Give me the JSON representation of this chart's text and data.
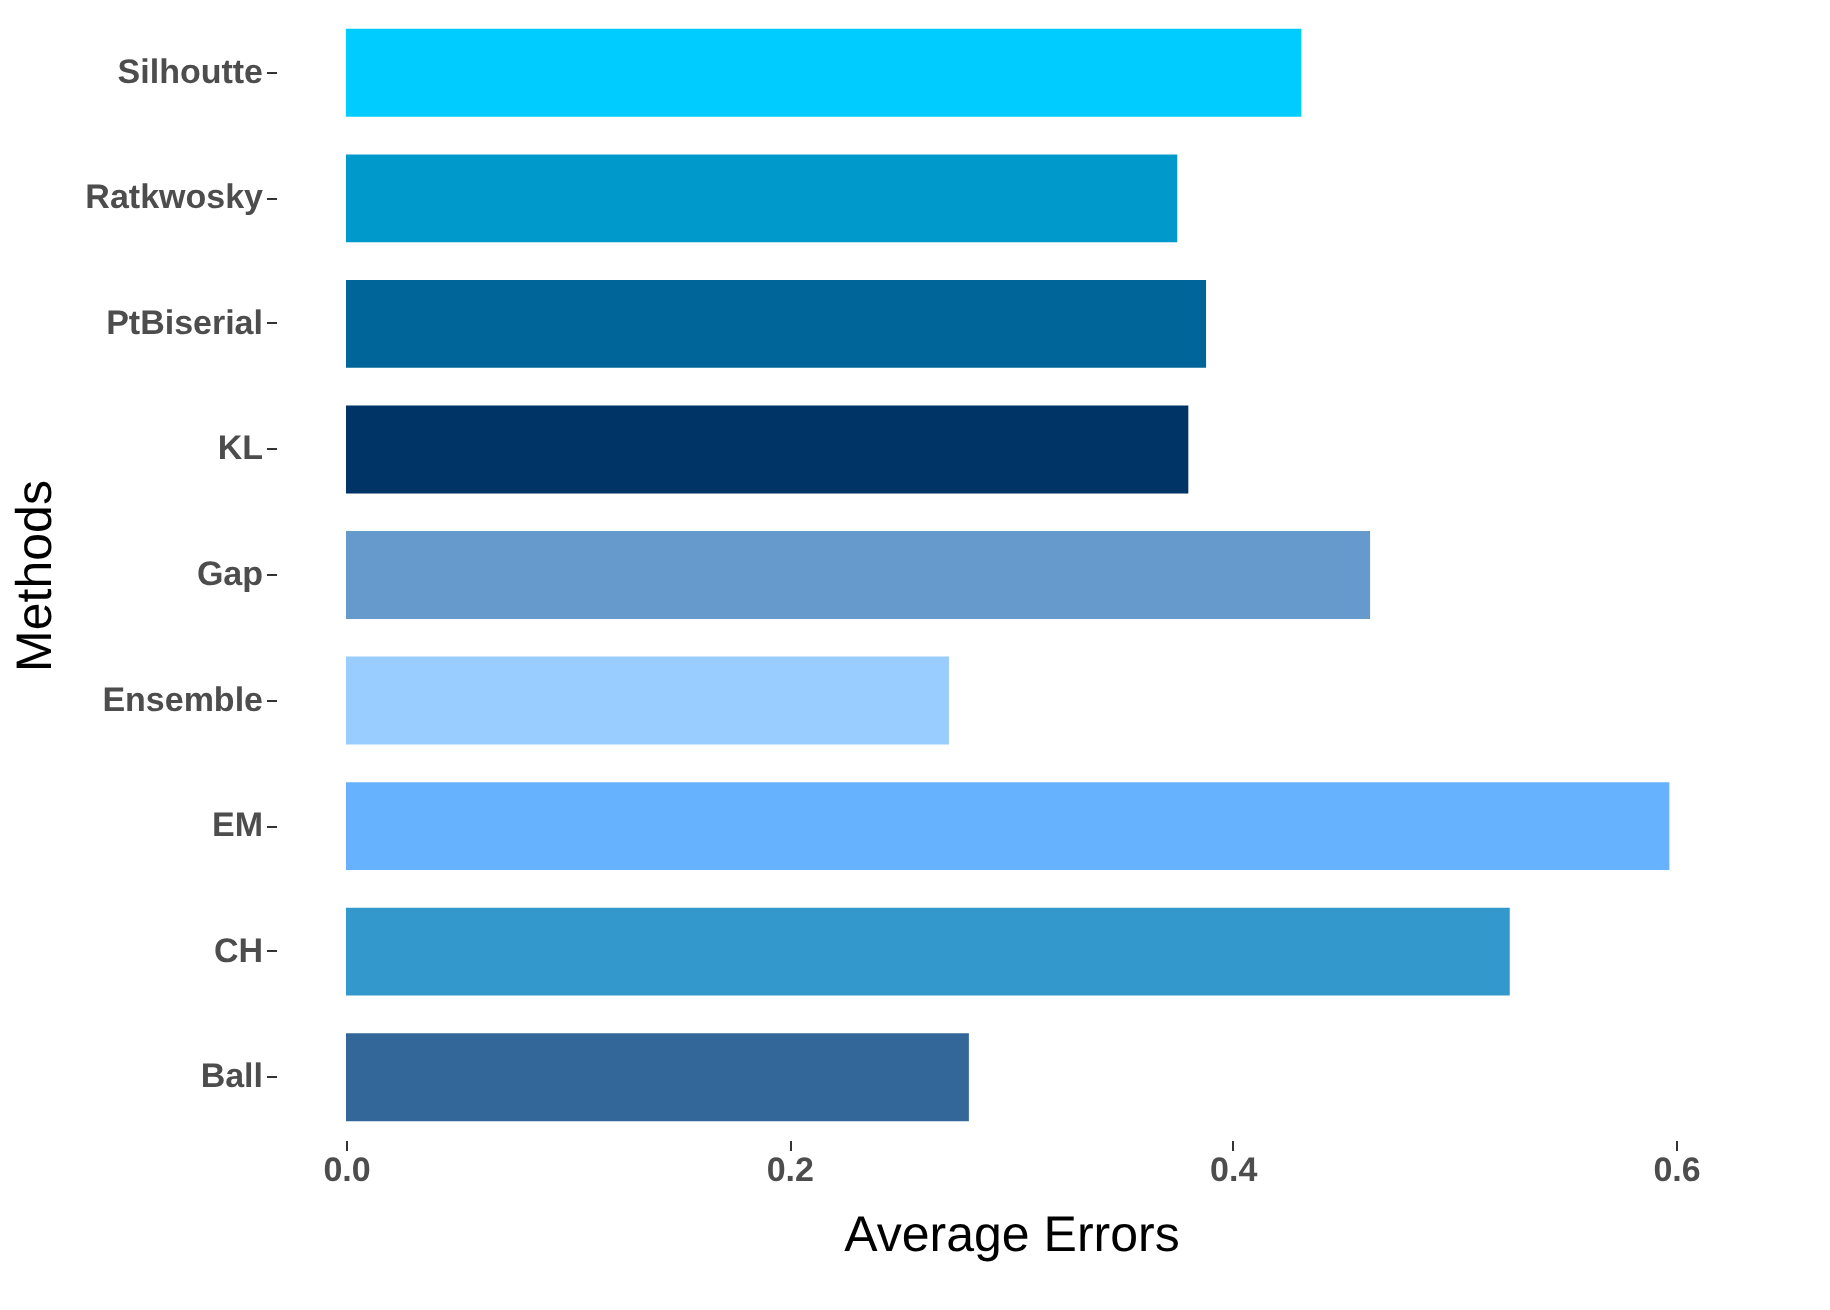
{
  "chart_data": {
    "type": "bar",
    "orientation": "horizontal",
    "xlabel": "Average Errors",
    "ylabel": "Methods",
    "categories": [
      "Silhoutte",
      "Ratkwosky",
      "PtBiserial",
      "KL",
      "Gap",
      "Ensemble",
      "EM",
      "CH",
      "Ball"
    ],
    "values": [
      0.431,
      0.375,
      0.388,
      0.38,
      0.462,
      0.272,
      0.597,
      0.525,
      0.281
    ],
    "colors": [
      "#00ccff",
      "#0099cc",
      "#006699",
      "#003366",
      "#6699cc",
      "#99ccff",
      "#66b2ff",
      "#3399cc",
      "#336699"
    ],
    "xticks": [
      {
        "value": 0,
        "label": "0.0"
      },
      {
        "value": 0.2,
        "label": "0.2"
      },
      {
        "value": 0.4,
        "label": "0.4"
      },
      {
        "value": 0.6,
        "label": "0.6"
      }
    ],
    "xlim": [
      0,
      0.6
    ],
    "grid": false,
    "legend": false
  }
}
